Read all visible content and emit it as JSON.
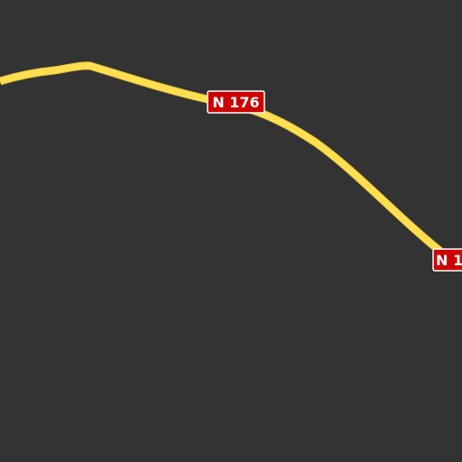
{
  "map": {
    "background_color": "#333333",
    "road": {
      "type": "national-road",
      "color": "#ffdf4f",
      "casing_color": "#e6c53a"
    },
    "shields": [
      {
        "ref": "N 176",
        "bg_color": "#cc0000",
        "border_color": "#ffffff",
        "text_color": "#ffffff"
      },
      {
        "ref": "N 1",
        "bg_color": "#cc0000",
        "border_color": "#ffffff",
        "text_color": "#ffffff"
      }
    ]
  }
}
